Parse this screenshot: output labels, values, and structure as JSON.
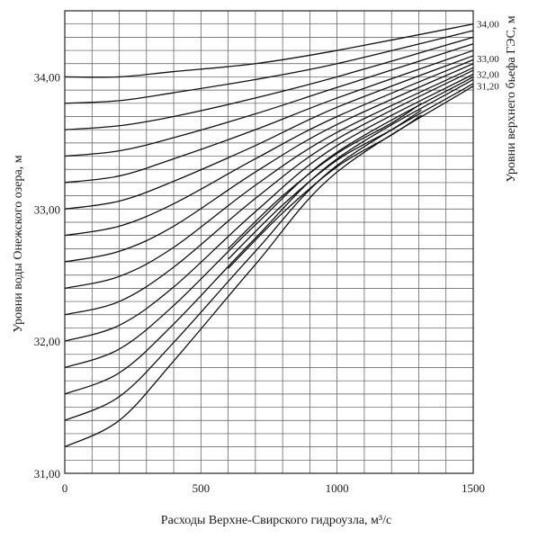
{
  "chart_data": {
    "type": "line",
    "title": "",
    "xlabel": "Расходы Верхне-Свирского гидроузла, м³/с",
    "ylabel_left": "Уровни воды Онежского озера, м",
    "ylabel_right": "Уровни верхнего бьефа ГЭС, м",
    "xlim": [
      0,
      1500
    ],
    "ylim": [
      31.0,
      34.5
    ],
    "x_ticks": [
      0,
      500,
      1000,
      1500
    ],
    "x_tick_labels": [
      "0",
      "500",
      "1000",
      "1500"
    ],
    "y_ticks": [
      31.0,
      32.0,
      33.0,
      34.0
    ],
    "y_tick_labels": [
      "31,00",
      "32,00",
      "33,00",
      "34,00"
    ],
    "right_labels": [
      {
        "text": "34,00",
        "y": 34.4
      },
      {
        "text": "33,00",
        "y": 34.14
      },
      {
        "text": "32,00",
        "y": 34.02
      },
      {
        "text": "31,20",
        "y": 33.93
      }
    ],
    "grid": true,
    "series": [
      {
        "x": [
          0,
          200,
          400,
          700,
          1000,
          1500
        ],
        "values": [
          34.0,
          34.0,
          34.04,
          34.1,
          34.2,
          34.4
        ]
      },
      {
        "x": [
          0,
          200,
          400,
          700,
          1000,
          1500
        ],
        "values": [
          33.8,
          33.82,
          33.88,
          33.98,
          34.1,
          34.35
        ]
      },
      {
        "x": [
          0,
          200,
          400,
          700,
          1000,
          1500
        ],
        "values": [
          33.6,
          33.63,
          33.7,
          33.84,
          34.0,
          34.3
        ]
      },
      {
        "x": [
          0,
          200,
          400,
          700,
          1000,
          1500
        ],
        "values": [
          33.4,
          33.44,
          33.54,
          33.72,
          33.92,
          34.25
        ]
      },
      {
        "x": [
          0,
          200,
          400,
          700,
          1000,
          1500
        ],
        "values": [
          33.2,
          33.25,
          33.38,
          33.6,
          33.84,
          34.2
        ]
      },
      {
        "x": [
          0,
          200,
          400,
          700,
          1000,
          1500
        ],
        "values": [
          33.0,
          33.06,
          33.21,
          33.48,
          33.77,
          34.16
        ]
      },
      {
        "x": [
          0,
          200,
          400,
          700,
          1000,
          1500
        ],
        "values": [
          32.8,
          32.87,
          33.04,
          33.38,
          33.7,
          34.13
        ]
      },
      {
        "x": [
          0,
          200,
          400,
          700,
          1000,
          1500
        ],
        "values": [
          32.6,
          32.68,
          32.87,
          33.28,
          33.64,
          34.1
        ]
      },
      {
        "x": [
          0,
          200,
          400,
          700,
          1000,
          1500
        ],
        "values": [
          32.4,
          32.49,
          32.71,
          33.18,
          33.58,
          34.07
        ]
      },
      {
        "x": [
          0,
          200,
          400,
          700,
          1000,
          1500
        ],
        "values": [
          32.2,
          32.3,
          32.56,
          33.08,
          33.53,
          34.05
        ]
      },
      {
        "x": [
          0,
          200,
          400,
          700,
          1000,
          1500
        ],
        "values": [
          32.0,
          32.12,
          32.41,
          32.98,
          33.48,
          34.02
        ]
      },
      {
        "x": [
          0,
          200,
          400,
          700,
          1000,
          1500
        ],
        "values": [
          31.8,
          31.94,
          32.27,
          32.88,
          33.43,
          34.0
        ]
      },
      {
        "x": [
          0,
          200,
          400,
          700,
          1000,
          1500
        ],
        "values": [
          31.6,
          31.76,
          32.13,
          32.78,
          33.38,
          33.98
        ]
      },
      {
        "x": [
          0,
          200,
          400,
          700,
          1000,
          1500
        ],
        "values": [
          31.4,
          31.58,
          31.99,
          32.68,
          33.33,
          33.95
        ]
      },
      {
        "x": [
          0,
          200,
          400,
          700,
          1000,
          1500
        ],
        "values": [
          31.2,
          31.4,
          31.85,
          32.58,
          33.28,
          33.93
        ]
      },
      {
        "x": [
          600,
          800,
          1000,
          1200,
          1310
        ],
        "values": [
          32.7,
          33.1,
          33.42,
          33.65,
          33.8
        ]
      },
      {
        "x": [
          600,
          800,
          1000,
          1200,
          1310
        ],
        "values": [
          32.62,
          33.03,
          33.37,
          33.6,
          33.75
        ]
      },
      {
        "x": [
          600,
          800,
          1000,
          1200,
          1310
        ],
        "values": [
          32.55,
          32.97,
          33.32,
          33.56,
          33.71
        ]
      }
    ]
  }
}
